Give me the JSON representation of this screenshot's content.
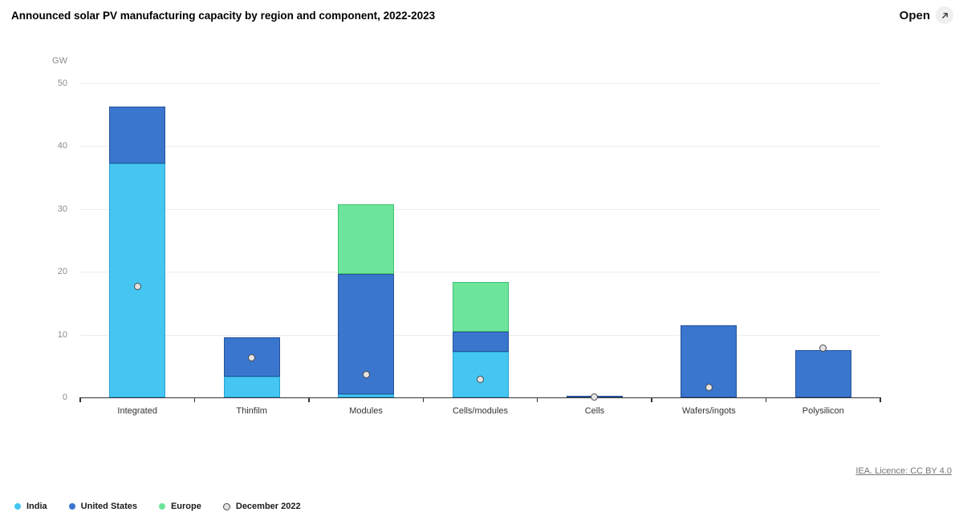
{
  "header": {
    "title": "Announced solar PV manufacturing capacity by region and component, 2022-2023",
    "open_label": "Open"
  },
  "footer": {
    "license_link": "IEA. Licence: CC BY 4.0"
  },
  "chart_data": {
    "type": "bar",
    "stacked": true,
    "title": "Announced solar PV manufacturing capacity by region and component, 2022-2023",
    "unit": "GW",
    "ylabel": "GW",
    "xlabel": "",
    "ylim": [
      0,
      50
    ],
    "y_ticks": [
      0,
      10,
      20,
      30,
      40,
      50
    ],
    "grid": "horizontal",
    "legend_position": "bottom-left",
    "categories": [
      "Integrated",
      "Thinfilm",
      "Modules",
      "Cells/modules",
      "Cells",
      "Wafers/ingots",
      "Polysilicon"
    ],
    "series": [
      {
        "name": "India",
        "color": "#45C6F2",
        "border": "#27A3D4",
        "values": [
          37.3,
          3.3,
          0.5,
          7.3,
          0,
          0,
          0
        ]
      },
      {
        "name": "United States",
        "color": "#3A76CE",
        "border": "#27539B",
        "values": [
          9.0,
          6.3,
          19.1,
          3.2,
          0.3,
          11.5,
          7.5
        ]
      },
      {
        "name": "Europe",
        "color": "#6CE59A",
        "border": "#3FBF72",
        "values": [
          0,
          0,
          11.2,
          7.9,
          0,
          0,
          0
        ]
      }
    ],
    "markers": {
      "name": "December 2022",
      "fill": "#E4E4E4",
      "stroke": "#4A4A4A",
      "values": [
        17.7,
        6.3,
        3.6,
        2.9,
        0.1,
        1.6,
        7.8
      ]
    }
  }
}
